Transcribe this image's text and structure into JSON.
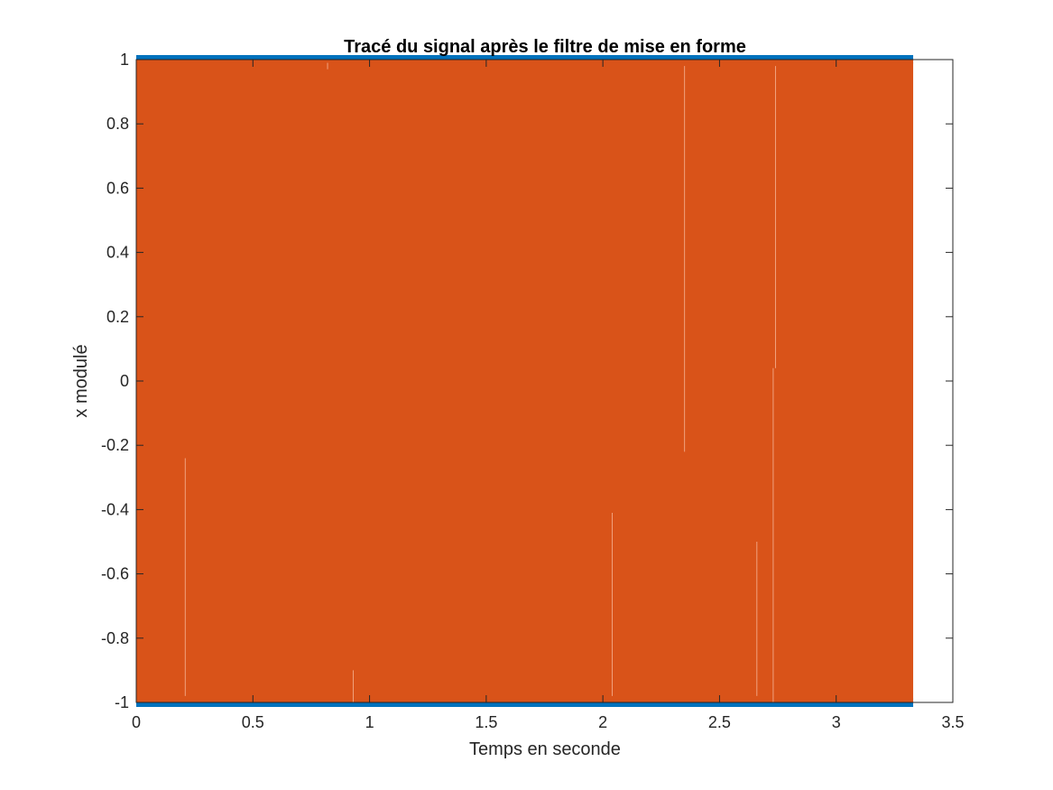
{
  "chart_data": {
    "type": "line",
    "title": "Tracé du signal après le filtre de mise en forme",
    "xlabel": "Temps en seconde",
    "ylabel": "x modulé",
    "xlim": [
      0,
      3.5
    ],
    "ylim": [
      -1,
      1
    ],
    "x_ticks": [
      0,
      0.5,
      1,
      1.5,
      2,
      2.5,
      3,
      3.5
    ],
    "x_tick_labels": [
      "0",
      "0.5",
      "1",
      "1.5",
      "2",
      "2.5",
      "3",
      "3.5"
    ],
    "y_ticks": [
      -1,
      -0.8,
      -0.6,
      -0.4,
      -0.2,
      0,
      0.2,
      0.4,
      0.6,
      0.8,
      1
    ],
    "y_tick_labels": [
      "-1",
      "-0.8",
      "-0.6",
      "-0.4",
      "-0.2",
      "0",
      "0.2",
      "0.4",
      "0.6",
      "0.8",
      "1"
    ],
    "grid": false,
    "series": [
      {
        "color": "#0072BD",
        "style": "dense binary signal",
        "x_range": [
          0,
          3.33
        ],
        "levels": [
          -1,
          1
        ]
      },
      {
        "color": "#D95319",
        "style": "dense oscillating signal filling the band",
        "x_range": [
          0,
          3.33
        ],
        "y_range": [
          -1,
          1
        ],
        "gaps": [
          {
            "x": 0.21,
            "y_range": [
              -0.98,
              -0.24
            ]
          },
          {
            "x": 0.82,
            "y_range": [
              0.97,
              0.99
            ]
          },
          {
            "x": 0.93,
            "y_range": [
              -1.0,
              -0.9
            ]
          },
          {
            "x": 2.04,
            "y_range": [
              -0.98,
              -0.41
            ]
          },
          {
            "x": 2.35,
            "y_range": [
              -0.22,
              0.98
            ]
          },
          {
            "x": 2.66,
            "y_range": [
              -0.98,
              -0.5
            ]
          },
          {
            "x": 2.73,
            "y_range": [
              -1.0,
              0.04
            ]
          },
          {
            "x": 2.74,
            "y_range": [
              0.04,
              0.98
            ]
          }
        ]
      }
    ]
  }
}
